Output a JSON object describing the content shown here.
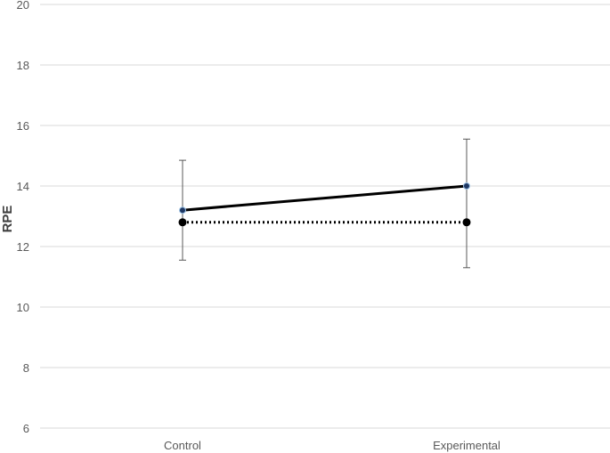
{
  "chart_data": {
    "type": "line",
    "title": "",
    "xlabel": "",
    "ylabel": "RPE",
    "categories": [
      "Control",
      "Experimental"
    ],
    "ylim": [
      6,
      20
    ],
    "yticks": [
      6,
      8,
      10,
      12,
      14,
      16,
      18,
      20
    ],
    "grid": true,
    "legend": "none",
    "series": [
      {
        "values": [
          13.2,
          14.0
        ],
        "error_upper": [
          14.85,
          15.55
        ],
        "error_lower": [
          11.55,
          11.3
        ],
        "line_style": "solid",
        "marker_fill": "#1f3864",
        "marker_edge": "#9dc3e6",
        "color": "#000000"
      },
      {
        "values": [
          12.8,
          12.8
        ],
        "line_style": "dotted",
        "marker_fill": "#000000",
        "color": "#000000"
      }
    ],
    "colors": {
      "grid": "#d9d9d9",
      "tick_text": "#595959",
      "axis_title": "#404040",
      "error_bar": "#595959"
    }
  }
}
